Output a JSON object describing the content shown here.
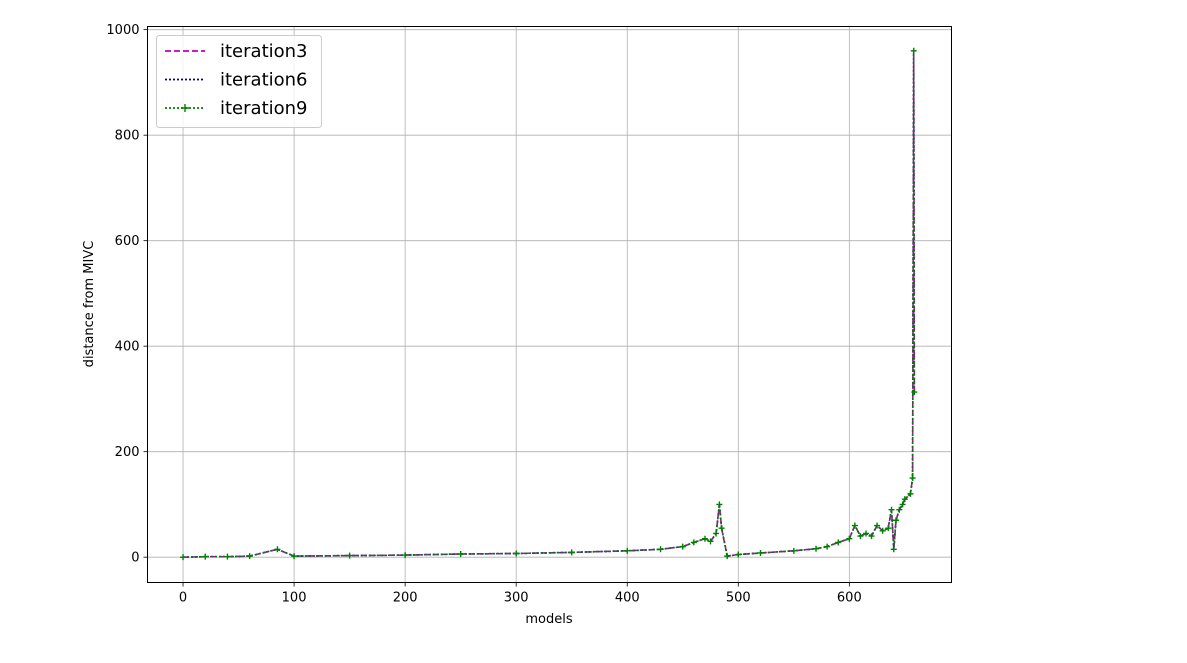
{
  "chart_data": {
    "type": "line",
    "xlabel": "models",
    "ylabel": "distance from MIVC",
    "xlim": [
      -32,
      692
    ],
    "ylim": [
      -48,
      1006
    ],
    "xticks": [
      0,
      100,
      200,
      300,
      400,
      500,
      600
    ],
    "yticks": [
      0,
      200,
      400,
      600,
      800,
      1000
    ],
    "grid": true,
    "legend_position": "top-left",
    "series": [
      {
        "name": "iteration3",
        "color": "#bf00bf",
        "dash": "dashed",
        "marker": "none"
      },
      {
        "name": "iteration6",
        "color": "#00008b",
        "dash": "dotted",
        "marker": "none"
      },
      {
        "name": "iteration9",
        "color": "#008000",
        "dash": "dotted",
        "marker": "+"
      }
    ],
    "x": [
      0,
      20,
      40,
      60,
      85,
      100,
      150,
      200,
      250,
      300,
      350,
      400,
      430,
      450,
      460,
      470,
      475,
      480,
      483,
      485,
      490,
      500,
      520,
      550,
      570,
      580,
      590,
      600,
      605,
      610,
      615,
      620,
      625,
      630,
      635,
      638,
      640,
      642,
      645,
      648,
      650,
      655,
      657,
      658,
      658.5
    ],
    "y": [
      0,
      1,
      1,
      2,
      15,
      2,
      3,
      4,
      6,
      7,
      9,
      12,
      15,
      20,
      28,
      35,
      30,
      45,
      100,
      55,
      2,
      5,
      8,
      12,
      16,
      20,
      28,
      35,
      60,
      40,
      45,
      40,
      60,
      50,
      55,
      90,
      15,
      70,
      90,
      100,
      110,
      120,
      150,
      960,
      313
    ]
  }
}
